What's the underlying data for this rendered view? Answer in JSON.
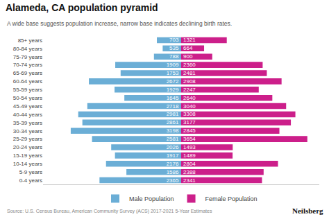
{
  "chart_data": {
    "type": "bar",
    "orientation": "horizontal",
    "title": "Alameda, CA population pyramid",
    "subtitle": "A wide base suggests population increase, narrow base indicates declining birth rates.",
    "annotations": [
      "Source: U.S. Census Bureau, American Community Survey (ACS) 2017-2021 5-Year Estimates",
      "Neilsberg"
    ],
    "categories": [
      "0-4 years",
      "5-9 years",
      "10-14 years",
      "15-19 years",
      "20-24 years",
      "25-29 years",
      "30-34 years",
      "35-39 years",
      "40-44 years",
      "45-49 years",
      "50-54 years",
      "55-59 years",
      "60-64 years",
      "65-69 years",
      "70-74 years",
      "75-79 years",
      "80-84 years",
      "85+ years"
    ],
    "series": [
      {
        "name": "Male Population",
        "color": "#6baed6",
        "values": [
          2365,
          1586,
          2176,
          1917,
          2026,
          2581,
          3198,
          2861,
          2981,
          2718,
          1645,
          1929,
          2672,
          1753,
          1909,
          788,
          535,
          703
        ]
      },
      {
        "name": "Female Population",
        "color": "#cc1f8a",
        "values": [
          2341,
          2388,
          2804,
          1489,
          1493,
          3654,
          2845,
          3177,
          3308,
          3040,
          2640,
          2247,
          2908,
          2481,
          2360,
          900,
          664,
          1321
        ]
      }
    ],
    "xlim": [
      0,
      4000
    ],
    "data_labels": true,
    "tick_labels": "y",
    "grid": false,
    "legend": "bottom"
  }
}
